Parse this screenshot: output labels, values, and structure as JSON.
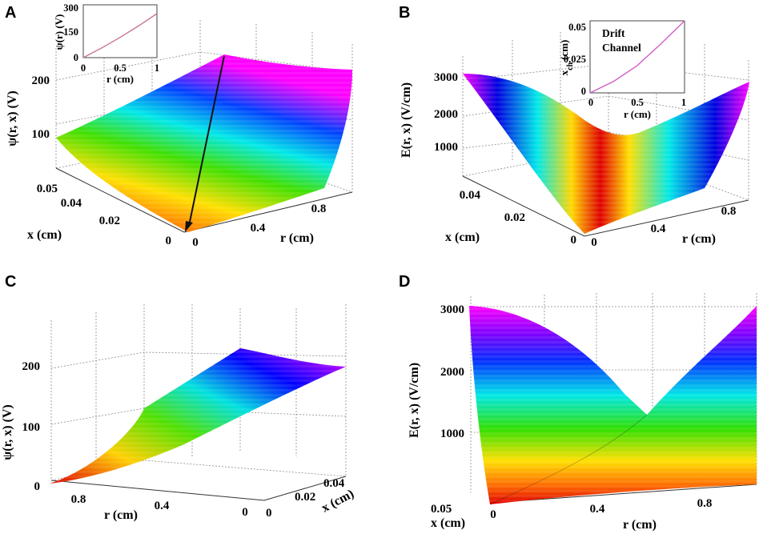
{
  "chart_data": [
    {
      "panel": "A",
      "type": "surface3d",
      "zlabel": "ψ(r, x) (V)",
      "xlabel": "x (cm)",
      "rlabel": "r (cm)",
      "z_ticks": [
        "100",
        "200"
      ],
      "x_ticks": [
        "0.05",
        "0.04",
        "0.02",
        "0"
      ],
      "r_ticks": [
        "0",
        "0.4",
        "0.8"
      ],
      "inset": {
        "type": "line",
        "ylabel": "ψ(r) (V)",
        "xlabel": "r (cm)",
        "y_ticks": [
          "0",
          "150",
          "300"
        ],
        "x_ticks": [
          "0",
          "0.5",
          "1"
        ],
        "x": [
          0,
          0.25,
          0.5,
          0.75,
          1.0
        ],
        "y": [
          0,
          55,
          115,
          180,
          250
        ],
        "color": "#c8788c"
      }
    },
    {
      "panel": "B",
      "type": "surface3d",
      "zlabel": "E(r, x) (V/cm)",
      "xlabel": "x (cm)",
      "rlabel": "r (cm)",
      "z_ticks": [
        "1000",
        "2000",
        "3000"
      ],
      "x_ticks": [
        "0.04",
        "0.02",
        "0"
      ],
      "r_ticks": [
        "0",
        "0.4",
        "0.8"
      ],
      "inset": {
        "type": "line",
        "ylabel": "x_ch (cm)",
        "ylabel_main": "x",
        "ylabel_sub": "ch",
        "ylabel_unit": "(cm)",
        "xlabel": "r (cm)",
        "y_ticks": [
          "0",
          "0.025",
          "0.05"
        ],
        "x_ticks": [
          "0",
          "0.5",
          "1"
        ],
        "annotation_line1": "Drift",
        "annotation_line2": "Channel",
        "x": [
          0,
          0.25,
          0.5,
          0.75,
          1.0
        ],
        "y": [
          0,
          0.008,
          0.019,
          0.034,
          0.05
        ],
        "color": "#d060c8"
      }
    },
    {
      "panel": "C",
      "type": "surface3d",
      "zlabel": "ψ(r, x) (V)",
      "xlabel": "x (cm)",
      "rlabel": "r (cm)",
      "z_ticks": [
        "0",
        "100",
        "200"
      ],
      "x_ticks": [
        "0",
        "0.02",
        "0.04"
      ],
      "r_ticks": [
        "0.8",
        "0.4",
        "0"
      ]
    },
    {
      "panel": "D",
      "type": "surface3d",
      "zlabel": "E(r, x) (V/cm)",
      "xlabel": "x (cm)",
      "rlabel": "r (cm)",
      "z_ticks": [
        "1000",
        "2000",
        "3000"
      ],
      "x_ticks": [
        "0.05"
      ],
      "r_ticks": [
        "0",
        "0.4",
        "0.8"
      ]
    }
  ],
  "colormap": [
    "#e00000",
    "#ff6000",
    "#ffd800",
    "#b8f000",
    "#30d830",
    "#00e8e8",
    "#0060ff",
    "#0000d0",
    "#8000ff",
    "#ff00ff"
  ]
}
